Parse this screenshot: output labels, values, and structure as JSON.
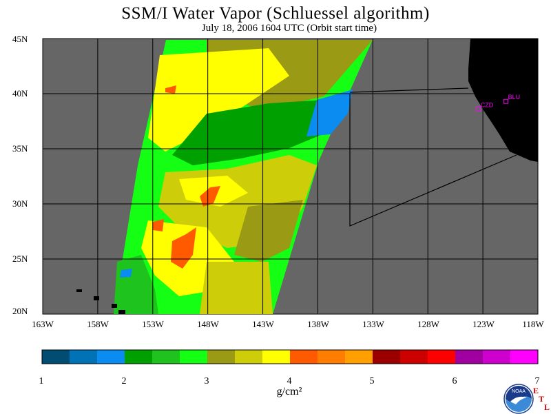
{
  "title": "SSM/I Water Vapor (Schluessel algorithm)",
  "subtitle": "July 18, 2006  1604 UTC  (Orbit start time)",
  "lat_labels": [
    "45N",
    "40N",
    "35N",
    "30N",
    "25N",
    "20N"
  ],
  "lon_labels": [
    "163W",
    "158W",
    "153W",
    "148W",
    "143W",
    "138W",
    "133W",
    "128W",
    "123W",
    "118W"
  ],
  "stations": [
    {
      "name": "CZD",
      "lon": -123.4,
      "lat": 38.6
    },
    {
      "name": "BLU",
      "lon": -120.9,
      "lat": 39.3
    }
  ],
  "colorbar": {
    "units": "g/cm²",
    "ticks": [
      "1",
      "2",
      "3",
      "4",
      "5",
      "6",
      "7"
    ],
    "min": 1,
    "max": 7,
    "colors": [
      "#004c73",
      "#0073b6",
      "#0a8cf0",
      "#00a000",
      "#1ec31e",
      "#14ff14",
      "#9a9a14",
      "#cdcd0a",
      "#ffff00",
      "#ff5a00",
      "#ff7d00",
      "#ffa000",
      "#9b0000",
      "#cd0000",
      "#ff0000",
      "#a000a0",
      "#cd00cd",
      "#ff00ff"
    ]
  },
  "map": {
    "lon_range": [
      -163,
      -118
    ],
    "lat_range": [
      20,
      45
    ],
    "background_color": "#666666",
    "land_color": "#000000",
    "station_color": "#ff00ff"
  },
  "logo": {
    "text": "NOAA"
  },
  "etl": {
    "e": "E",
    "t": "T",
    "l": "L"
  }
}
